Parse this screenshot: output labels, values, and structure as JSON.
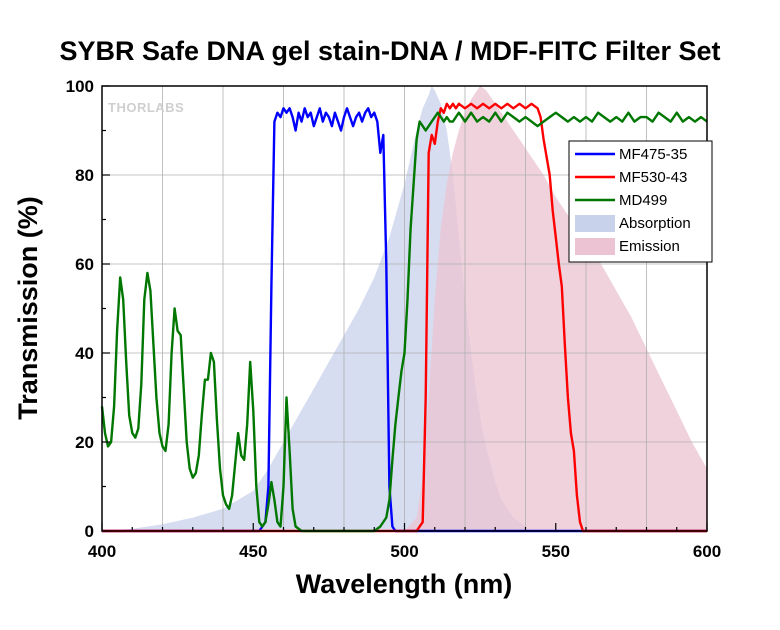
{
  "chart_data": {
    "type": "line",
    "title": "SYBR Safe DNA gel stain-DNA / MDF-FITC Filter Set",
    "xlabel": "Wavelength (nm)",
    "ylabel": "Transmission (%)",
    "xlim": [
      400,
      600
    ],
    "ylim": [
      0,
      100
    ],
    "xticks": [
      400,
      450,
      500,
      550,
      600
    ],
    "yticks": [
      0,
      20,
      40,
      60,
      80,
      100
    ],
    "grid": true,
    "legend_position": "top-right",
    "watermark": "THORLABS",
    "series": [
      {
        "name": "MF475-35",
        "kind": "line",
        "color": "#0000ff",
        "points": [
          [
            400,
            0
          ],
          [
            452,
            0
          ],
          [
            454,
            2
          ],
          [
            455,
            10
          ],
          [
            456,
            55
          ],
          [
            457,
            92
          ],
          [
            458,
            94
          ],
          [
            459,
            93
          ],
          [
            460,
            95
          ],
          [
            461,
            94
          ],
          [
            462,
            95
          ],
          [
            463,
            93
          ],
          [
            464,
            90
          ],
          [
            465,
            94
          ],
          [
            466,
            92
          ],
          [
            467,
            95
          ],
          [
            468,
            93
          ],
          [
            469,
            94
          ],
          [
            470,
            91
          ],
          [
            471,
            93
          ],
          [
            472,
            95
          ],
          [
            473,
            92
          ],
          [
            474,
            94
          ],
          [
            475,
            93
          ],
          [
            476,
            91
          ],
          [
            477,
            94
          ],
          [
            478,
            92
          ],
          [
            479,
            90
          ],
          [
            480,
            93
          ],
          [
            481,
            95
          ],
          [
            482,
            93
          ],
          [
            483,
            91
          ],
          [
            484,
            93
          ],
          [
            485,
            94
          ],
          [
            486,
            92
          ],
          [
            487,
            94
          ],
          [
            488,
            95
          ],
          [
            489,
            93
          ],
          [
            490,
            94
          ],
          [
            491,
            92
          ],
          [
            492,
            85
          ],
          [
            493,
            89
          ],
          [
            494,
            60
          ],
          [
            495,
            10
          ],
          [
            496,
            1
          ],
          [
            497,
            0
          ],
          [
            600,
            0
          ]
        ]
      },
      {
        "name": "MF530-43",
        "kind": "line",
        "color": "#ff0000",
        "points": [
          [
            400,
            0
          ],
          [
            504,
            0
          ],
          [
            506,
            2
          ],
          [
            507,
            30
          ],
          [
            508,
            85
          ],
          [
            509,
            89
          ],
          [
            510,
            87
          ],
          [
            511,
            92
          ],
          [
            512,
            95
          ],
          [
            513,
            94
          ],
          [
            514,
            96
          ],
          [
            515,
            95
          ],
          [
            516,
            96
          ],
          [
            517,
            95
          ],
          [
            518,
            96
          ],
          [
            520,
            95
          ],
          [
            522,
            96
          ],
          [
            524,
            95
          ],
          [
            526,
            96
          ],
          [
            528,
            95
          ],
          [
            530,
            96
          ],
          [
            532,
            95
          ],
          [
            534,
            96
          ],
          [
            536,
            95
          ],
          [
            538,
            96
          ],
          [
            540,
            95
          ],
          [
            542,
            96
          ],
          [
            544,
            95
          ],
          [
            545,
            93
          ],
          [
            546,
            88
          ],
          [
            548,
            80
          ],
          [
            549,
            72
          ],
          [
            550,
            66
          ],
          [
            551,
            60
          ],
          [
            552,
            55
          ],
          [
            553,
            42
          ],
          [
            554,
            30
          ],
          [
            555,
            22
          ],
          [
            556,
            18
          ],
          [
            557,
            8
          ],
          [
            558,
            2
          ],
          [
            559,
            0
          ],
          [
            600,
            0
          ]
        ]
      },
      {
        "name": "MD499",
        "kind": "line",
        "color": "#007700",
        "points": [
          [
            400,
            28
          ],
          [
            401,
            22
          ],
          [
            402,
            19
          ],
          [
            403,
            20
          ],
          [
            404,
            28
          ],
          [
            405,
            45
          ],
          [
            406,
            57
          ],
          [
            407,
            52
          ],
          [
            408,
            38
          ],
          [
            409,
            26
          ],
          [
            410,
            22
          ],
          [
            411,
            21
          ],
          [
            412,
            23
          ],
          [
            413,
            33
          ],
          [
            414,
            52
          ],
          [
            415,
            58
          ],
          [
            416,
            54
          ],
          [
            417,
            42
          ],
          [
            418,
            30
          ],
          [
            419,
            22
          ],
          [
            420,
            19
          ],
          [
            421,
            18
          ],
          [
            422,
            24
          ],
          [
            423,
            40
          ],
          [
            424,
            50
          ],
          [
            425,
            45
          ],
          [
            426,
            44
          ],
          [
            427,
            32
          ],
          [
            428,
            20
          ],
          [
            429,
            14
          ],
          [
            430,
            12
          ],
          [
            431,
            13
          ],
          [
            432,
            17
          ],
          [
            433,
            26
          ],
          [
            434,
            34
          ],
          [
            435,
            34
          ],
          [
            436,
            40
          ],
          [
            437,
            38
          ],
          [
            438,
            25
          ],
          [
            439,
            14
          ],
          [
            440,
            8
          ],
          [
            441,
            6
          ],
          [
            442,
            5
          ],
          [
            443,
            8
          ],
          [
            444,
            15
          ],
          [
            445,
            22
          ],
          [
            446,
            17
          ],
          [
            447,
            16
          ],
          [
            448,
            24
          ],
          [
            449,
            38
          ],
          [
            450,
            27
          ],
          [
            451,
            10
          ],
          [
            452,
            2
          ],
          [
            453,
            1
          ],
          [
            454,
            2
          ],
          [
            455,
            6
          ],
          [
            456,
            11
          ],
          [
            457,
            7
          ],
          [
            458,
            2
          ],
          [
            459,
            1
          ],
          [
            460,
            10
          ],
          [
            461,
            30
          ],
          [
            462,
            18
          ],
          [
            463,
            5
          ],
          [
            464,
            1
          ],
          [
            466,
            0
          ],
          [
            490,
            0
          ],
          [
            492,
            1
          ],
          [
            494,
            3
          ],
          [
            495,
            7
          ],
          [
            496,
            16
          ],
          [
            497,
            24
          ],
          [
            498,
            30
          ],
          [
            499,
            36
          ],
          [
            500,
            40
          ],
          [
            501,
            52
          ],
          [
            502,
            68
          ],
          [
            503,
            78
          ],
          [
            504,
            88
          ],
          [
            505,
            92
          ],
          [
            506,
            91
          ],
          [
            507,
            90
          ],
          [
            508,
            91
          ],
          [
            509,
            92
          ],
          [
            510,
            93
          ],
          [
            511,
            94
          ],
          [
            512,
            93
          ],
          [
            513,
            92
          ],
          [
            514,
            93
          ],
          [
            515,
            92
          ],
          [
            516,
            92
          ],
          [
            517,
            93
          ],
          [
            518,
            94
          ],
          [
            519,
            93
          ],
          [
            520,
            92
          ],
          [
            522,
            94
          ],
          [
            524,
            92
          ],
          [
            526,
            93
          ],
          [
            528,
            92
          ],
          [
            530,
            94
          ],
          [
            532,
            92
          ],
          [
            534,
            94
          ],
          [
            536,
            93
          ],
          [
            538,
            92
          ],
          [
            540,
            93
          ],
          [
            542,
            92
          ],
          [
            544,
            91
          ],
          [
            546,
            92
          ],
          [
            548,
            93
          ],
          [
            550,
            94
          ],
          [
            552,
            93
          ],
          [
            554,
            92
          ],
          [
            556,
            93
          ],
          [
            558,
            92
          ],
          [
            560,
            93
          ],
          [
            562,
            92
          ],
          [
            564,
            94
          ],
          [
            566,
            93
          ],
          [
            568,
            92
          ],
          [
            570,
            93
          ],
          [
            572,
            92
          ],
          [
            574,
            94
          ],
          [
            576,
            92
          ],
          [
            578,
            93
          ],
          [
            580,
            93
          ],
          [
            582,
            92
          ],
          [
            584,
            94
          ],
          [
            586,
            93
          ],
          [
            588,
            92
          ],
          [
            590,
            94
          ],
          [
            592,
            92
          ],
          [
            594,
            93
          ],
          [
            596,
            92
          ],
          [
            598,
            93
          ],
          [
            600,
            92
          ]
        ]
      },
      {
        "name": "Absorption",
        "kind": "area",
        "color": "#c8d2eb",
        "points": [
          [
            400,
            0
          ],
          [
            410,
            0.5
          ],
          [
            420,
            1.5
          ],
          [
            430,
            3
          ],
          [
            440,
            5
          ],
          [
            445,
            7
          ],
          [
            450,
            9
          ],
          [
            455,
            14
          ],
          [
            460,
            20
          ],
          [
            465,
            26
          ],
          [
            470,
            32
          ],
          [
            475,
            38
          ],
          [
            480,
            44
          ],
          [
            485,
            50
          ],
          [
            490,
            57
          ],
          [
            495,
            66
          ],
          [
            500,
            78
          ],
          [
            502,
            84
          ],
          [
            504,
            90
          ],
          [
            506,
            95
          ],
          [
            508,
            98
          ],
          [
            509,
            100
          ],
          [
            510,
            99
          ],
          [
            512,
            96
          ],
          [
            514,
            90
          ],
          [
            516,
            80
          ],
          [
            518,
            66
          ],
          [
            520,
            52
          ],
          [
            522,
            40
          ],
          [
            524,
            30
          ],
          [
            526,
            22
          ],
          [
            528,
            16
          ],
          [
            530,
            11
          ],
          [
            532,
            7
          ],
          [
            534,
            5
          ],
          [
            536,
            3
          ],
          [
            538,
            2
          ],
          [
            540,
            1
          ],
          [
            540,
            0
          ]
        ]
      },
      {
        "name": "Emission",
        "kind": "area",
        "color": "#ebc3d2",
        "points": [
          [
            500,
            0
          ],
          [
            504,
            3
          ],
          [
            506,
            12
          ],
          [
            508,
            30
          ],
          [
            510,
            52
          ],
          [
            512,
            68
          ],
          [
            514,
            78
          ],
          [
            516,
            85
          ],
          [
            518,
            90
          ],
          [
            520,
            94
          ],
          [
            522,
            97
          ],
          [
            524,
            99
          ],
          [
            525,
            100
          ],
          [
            527,
            99
          ],
          [
            530,
            96
          ],
          [
            534,
            92
          ],
          [
            538,
            88
          ],
          [
            542,
            84
          ],
          [
            546,
            80
          ],
          [
            550,
            75
          ],
          [
            555,
            70
          ],
          [
            560,
            66
          ],
          [
            565,
            60
          ],
          [
            570,
            54
          ],
          [
            575,
            48
          ],
          [
            580,
            41
          ],
          [
            585,
            34
          ],
          [
            590,
            27
          ],
          [
            595,
            20
          ],
          [
            600,
            14
          ],
          [
            600,
            0
          ]
        ]
      }
    ]
  }
}
